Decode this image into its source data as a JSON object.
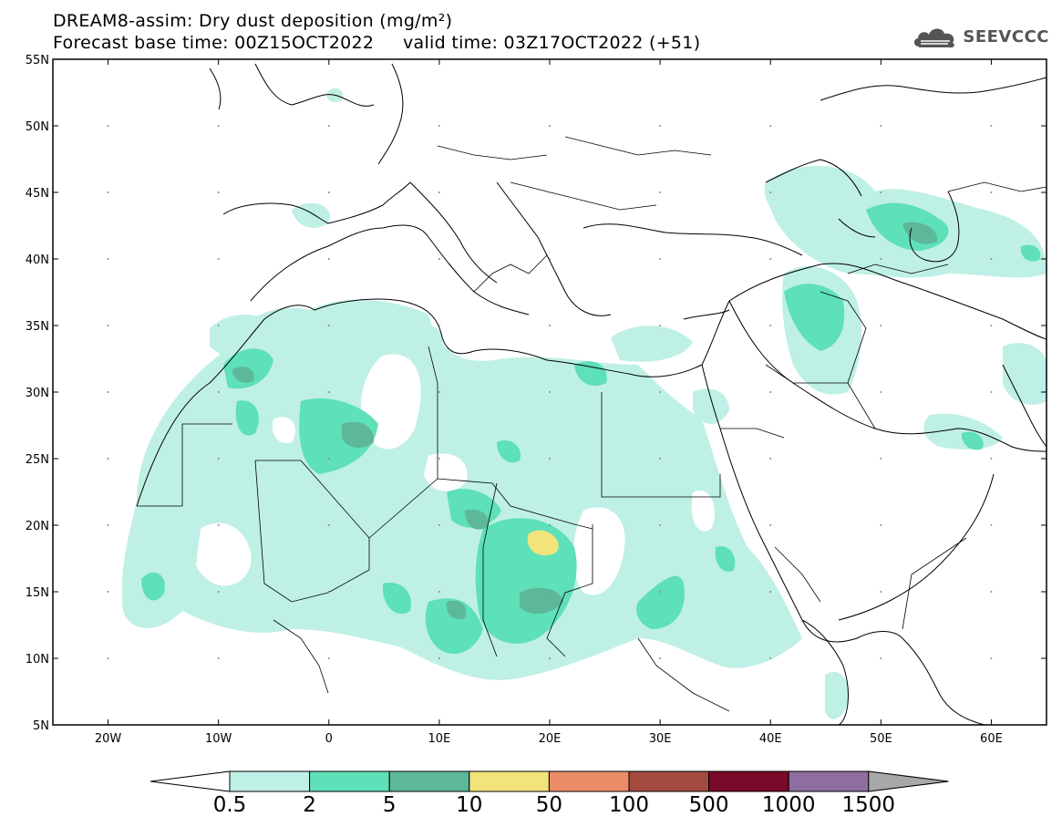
{
  "header": {
    "title_line1": "DREAM8-assim: Dry dust deposition (mg/m²)",
    "title_line2": "Forecast base time: 00Z15OCT2022     valid time: 03Z17OCT2022 (+51)",
    "logo_text": "SEEVCCC"
  },
  "map": {
    "projection": "lat-lon",
    "lon_range": [
      -25,
      65
    ],
    "lat_range": [
      5,
      55
    ],
    "x_ticks": [
      "20W",
      "10W",
      "0",
      "10E",
      "20E",
      "30E",
      "40E",
      "50E",
      "60E"
    ],
    "y_ticks": [
      "55N",
      "50N",
      "45N",
      "40N",
      "35N",
      "30N",
      "25N",
      "20N",
      "15N",
      "10N",
      "5N"
    ]
  },
  "colorbar": {
    "labels": [
      "0.5",
      "2",
      "5",
      "10",
      "50",
      "100",
      "500",
      "1000",
      "1500"
    ],
    "colors": [
      "#bff0e6",
      "#5ee0b8",
      "#5db89a",
      "#f2e47a",
      "#eb8c68",
      "#a34a3e",
      "#7a0a2a",
      "#8e6ea0",
      "#a8a8a8"
    ]
  },
  "colors": {
    "level_0_5": "#bff0e6",
    "level_2": "#5ee0b8",
    "level_5": "#5db89a",
    "level_10": "#f2e47a"
  }
}
